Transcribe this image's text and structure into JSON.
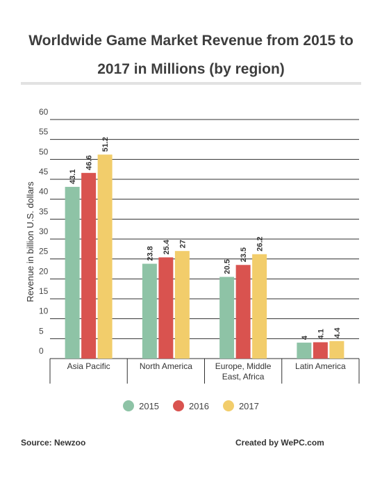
{
  "title": "Worldwide Game Market Revenue from 2015 to 2017 in Millions (by region)",
  "footer": {
    "source": "Source: Newzoo",
    "credit": "Created by WePC.com"
  },
  "colors": {
    "2015": "#8ec3a6",
    "2016": "#d9534f",
    "2017": "#f2cd6b",
    "grid": "#2f2f2f",
    "rule": "#e2e2e2"
  },
  "chart_data": {
    "type": "bar",
    "title": "Worldwide Game Market Revenue from 2015 to 2017 in Millions (by region)",
    "xlabel": "",
    "ylabel": "Revenue in billion U.S. dollars",
    "ylim": [
      0,
      60
    ],
    "yticks": [
      0,
      5,
      10,
      15,
      20,
      25,
      30,
      35,
      40,
      45,
      50,
      55,
      60
    ],
    "categories": [
      [
        "Asia Pacific"
      ],
      [
        "North America"
      ],
      [
        "Europe, Middle",
        "East, Africa"
      ],
      [
        "Latin America"
      ]
    ],
    "series": [
      {
        "name": "2015",
        "values": [
          43.1,
          23.8,
          20.5,
          4
        ]
      },
      {
        "name": "2016",
        "values": [
          46.6,
          25.4,
          23.5,
          4.1
        ]
      },
      {
        "name": "2017",
        "values": [
          51.2,
          27,
          26.2,
          4.4
        ]
      }
    ],
    "value_labels": [
      [
        "43.1",
        "23.8",
        "20.5",
        "4"
      ],
      [
        "46.6",
        "25.4",
        "23.5",
        "4.1"
      ],
      [
        "51.2",
        "27",
        "26.2",
        "4.4"
      ]
    ],
    "grid": true,
    "legend": "bottom"
  }
}
